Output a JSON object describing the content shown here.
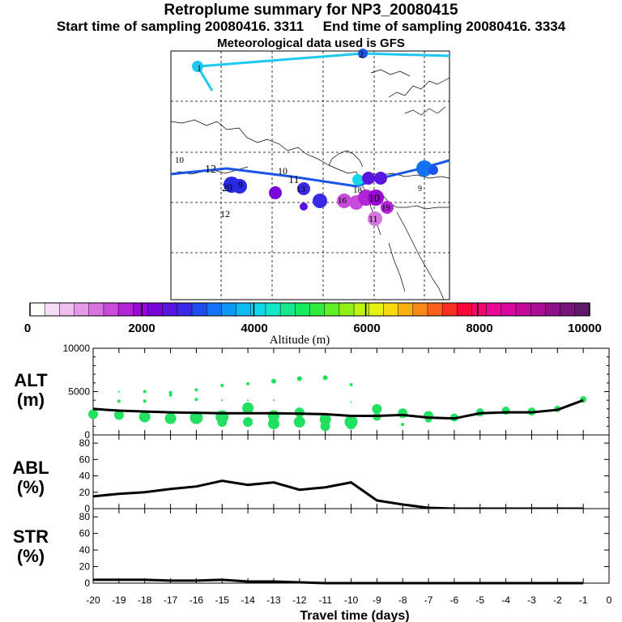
{
  "title": "Retroplume summary for NP3_20080415",
  "start_label": "Start time of sampling 20080416.  3311",
  "end_label": "End time of sampling 20080416.  3334",
  "met_label": "Meteorological data used is GFS",
  "colors": {
    "track_dark": "#1a55e8",
    "track_light": "#1ec8f0",
    "scatter": "#22e060",
    "line": "#000000"
  },
  "colorbar": {
    "label": "Altitude (m)",
    "ticks": [
      "0",
      "2000",
      "4000",
      "6000",
      "8000",
      "10000"
    ],
    "colors": [
      "#ffffff",
      "#f6ddf6",
      "#efbdf0",
      "#e49ae8",
      "#d774e0",
      "#c84bdb",
      "#b225d6",
      "#9a08d6",
      "#7a06da",
      "#5a14e0",
      "#3a2ae6",
      "#1e4ef0",
      "#1274f4",
      "#0c98f4",
      "#0cbcf0",
      "#10d8ec",
      "#14e6c8",
      "#16e890",
      "#18ea5e",
      "#30ec3a",
      "#60ee24",
      "#90f01a",
      "#c0f216",
      "#e8f012",
      "#f8d810",
      "#f8b010",
      "#f88814",
      "#f8601c",
      "#f83020",
      "#f80838",
      "#f0086a",
      "#e80896",
      "#d8089e",
      "#c4089c",
      "#aa0c96",
      "#8e108a",
      "#741678",
      "#5e1a68"
    ]
  },
  "map_labels": [
    {
      "text": "1",
      "color": "#000000"
    },
    {
      "text": "2",
      "color": "#000000"
    },
    {
      "text": "12",
      "color": "#000000"
    },
    {
      "text": "10",
      "color": "#000000"
    },
    {
      "text": "11",
      "color": "#000000"
    },
    {
      "text": "20",
      "color": "#000000"
    },
    {
      "text": "9",
      "color": "#000000"
    },
    {
      "text": "12",
      "color": "#000000"
    },
    {
      "text": "10",
      "color": "#cccc00"
    },
    {
      "text": "9",
      "color": "#000000"
    },
    {
      "text": "11",
      "color": "#000000"
    },
    {
      "text": "10",
      "color": "#000000"
    },
    {
      "text": "16",
      "color": "#000000"
    },
    {
      "text": "18",
      "color": "#000000"
    },
    {
      "text": "13",
      "color": "#000000"
    },
    {
      "text": "19",
      "color": "#000000"
    }
  ],
  "chart_data": [
    {
      "type": "scatter",
      "panel": "ALT",
      "ylabel": "ALT (m)",
      "ylim": [
        0,
        10000
      ],
      "yticks": [
        "0",
        "5000",
        "10000"
      ],
      "x": [
        -20,
        -19,
        -18,
        -17,
        -16,
        -15,
        -14,
        -13,
        -12,
        -11,
        -10,
        -9,
        -8,
        -7,
        -6,
        -5,
        -4,
        -3,
        -2,
        -1
      ],
      "line_values": [
        3000,
        2800,
        2700,
        2600,
        2550,
        2500,
        2500,
        2500,
        2450,
        2400,
        2200,
        2200,
        2300,
        2000,
        1900,
        2500,
        2600,
        2600,
        2900,
        4000
      ],
      "scatter_points": [
        [
          -20,
          2400,
          6
        ],
        [
          -19,
          2300,
          6
        ],
        [
          -19,
          3900,
          2
        ],
        [
          -19,
          5000,
          1
        ],
        [
          -18,
          2100,
          7
        ],
        [
          -18,
          3900,
          2
        ],
        [
          -18,
          5000,
          2
        ],
        [
          -17,
          1900,
          7
        ],
        [
          -17,
          4600,
          2
        ],
        [
          -17,
          4900,
          2
        ],
        [
          -16,
          2000,
          8
        ],
        [
          -16,
          4100,
          2
        ],
        [
          -16,
          5200,
          2
        ],
        [
          -15,
          2100,
          8
        ],
        [
          -15,
          1500,
          6
        ],
        [
          -15,
          4000,
          1
        ],
        [
          -15,
          5700,
          2
        ],
        [
          -14,
          3100,
          7
        ],
        [
          -14,
          1500,
          6
        ],
        [
          -14,
          4000,
          1
        ],
        [
          -14,
          5900,
          2
        ],
        [
          -13,
          2200,
          7
        ],
        [
          -13,
          1300,
          7
        ],
        [
          -13,
          4000,
          1
        ],
        [
          -13,
          6200,
          3
        ],
        [
          -12,
          2600,
          6
        ],
        [
          -12,
          1500,
          7
        ],
        [
          -12,
          6500,
          3
        ],
        [
          -11,
          1800,
          7
        ],
        [
          -11,
          1000,
          6
        ],
        [
          -11,
          6600,
          3
        ],
        [
          -10,
          1500,
          8
        ],
        [
          -10,
          1200,
          6
        ],
        [
          -10,
          3800,
          1
        ],
        [
          -10,
          5800,
          2
        ],
        [
          -9,
          3000,
          6
        ],
        [
          -9,
          2100,
          5
        ],
        [
          -8,
          2500,
          6
        ],
        [
          -8,
          1200,
          2
        ],
        [
          -7,
          2200,
          6
        ],
        [
          -7,
          1800,
          4
        ],
        [
          -6,
          2000,
          5
        ],
        [
          -5,
          2600,
          5
        ],
        [
          -4,
          2800,
          5
        ],
        [
          -3,
          2700,
          5
        ],
        [
          -2,
          3000,
          4
        ],
        [
          -1,
          4100,
          4
        ]
      ]
    },
    {
      "type": "line",
      "panel": "ABL",
      "ylabel": "ABL (%)",
      "ylim": [
        0,
        90
      ],
      "yticks": [
        "0",
        "20",
        "40",
        "60",
        "80"
      ],
      "x": [
        -20,
        -19,
        -18,
        -17,
        -16,
        -15,
        -14,
        -13,
        -12,
        -11,
        -10,
        -9,
        -8,
        -7,
        -6,
        -5,
        -4,
        -3,
        -2,
        -1
      ],
      "values": [
        15,
        18,
        20,
        24,
        27,
        34,
        29,
        32,
        23,
        26,
        32,
        10,
        5,
        1,
        0,
        0,
        0,
        0,
        0,
        0
      ]
    },
    {
      "type": "line",
      "panel": "STR",
      "ylabel": "STR (%)",
      "ylim": [
        0,
        90
      ],
      "yticks": [
        "0",
        "20",
        "40",
        "60",
        "80"
      ],
      "x": [
        -20,
        -19,
        -18,
        -17,
        -16,
        -15,
        -14,
        -13,
        -12,
        -11,
        -10,
        -9,
        -8,
        -7,
        -6,
        -5,
        -4,
        -3,
        -2,
        -1
      ],
      "values": [
        4,
        4,
        4,
        3,
        3,
        4,
        2,
        2,
        1,
        0,
        0,
        0,
        0,
        0,
        0,
        0,
        0,
        0,
        0,
        0
      ]
    }
  ],
  "xaxis": {
    "label": "Travel time (days)",
    "ticks": [
      "-20",
      "-19",
      "-18",
      "-17",
      "-16",
      "-15",
      "-14",
      "-13",
      "-12",
      "-11",
      "-10",
      "-9",
      "-8",
      "-7",
      "-6",
      "-5",
      "-4",
      "-3",
      "-2",
      "-1",
      "0"
    ]
  },
  "panel_labels": {
    "alt": [
      "ALT",
      "(m)"
    ],
    "abl": [
      "ABL",
      "(%)"
    ],
    "str": [
      "STR",
      "(%)"
    ]
  }
}
